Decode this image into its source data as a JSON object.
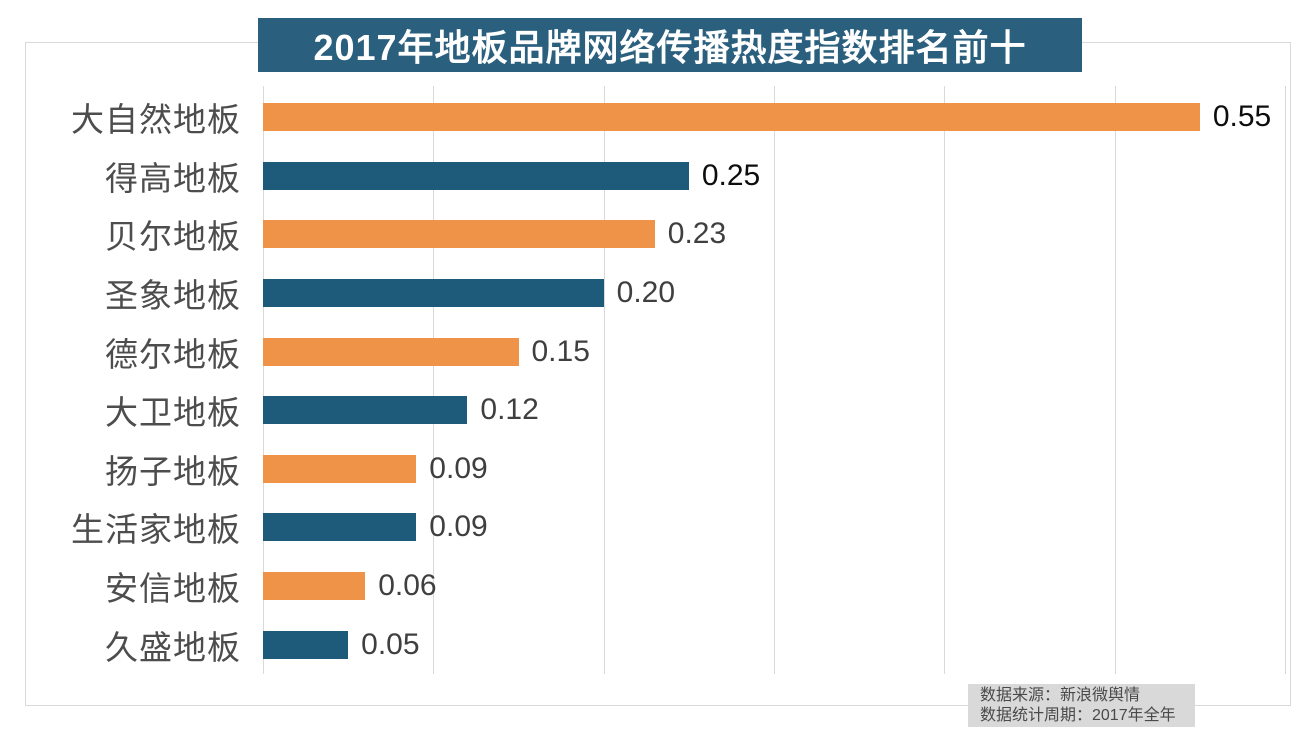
{
  "title": "2017年地板品牌网络传播热度指数排名前十",
  "chart_data": {
    "type": "bar",
    "orientation": "horizontal",
    "title": "2017年地板品牌网络传播热度指数排名前十",
    "categories": [
      "大自然地板",
      "得高地板",
      "贝尔地板",
      "圣象地板",
      "德尔地板",
      "大卫地板",
      "扬子地板",
      "生活家地板",
      "安信地板",
      "久盛地板"
    ],
    "values": [
      0.55,
      0.25,
      0.23,
      0.2,
      0.15,
      0.12,
      0.09,
      0.09,
      0.06,
      0.05
    ],
    "value_labels": [
      "0.55",
      "0.25",
      "0.23",
      "0.20",
      "0.15",
      "0.12",
      "0.09",
      "0.09",
      "0.06",
      "0.05"
    ],
    "value_label_colors": [
      "#0d0d0d",
      "#0d0d0d",
      "#3f3f3f",
      "#3f3f3f",
      "#3f3f3f",
      "#3f3f3f",
      "#3f3f3f",
      "#3f3f3f",
      "#3f3f3f",
      "#3f3f3f"
    ],
    "xlim": [
      0,
      0.6
    ],
    "grid_values": [
      0,
      0.1,
      0.2,
      0.3,
      0.4,
      0.5,
      0.6
    ],
    "grid_on": true,
    "legend": "none",
    "bar_colors_alternating": [
      "#ef9348",
      "#1e5b7b"
    ]
  },
  "footnote": {
    "line1": "数据来源：新浪微舆情",
    "line2": "数据统计周期：2017年全年"
  },
  "colors": {
    "banner_bg": "#2a5f7e",
    "orange_bar": "#ef9348",
    "blue_bar": "#1e5b7b",
    "gridline": "#d9d9d9",
    "chart_border": "#d9d9d9",
    "category_text": "#4d4d4d",
    "footnote_bg": "#d9d9d9",
    "footnote_text": "#4a4a4a"
  }
}
